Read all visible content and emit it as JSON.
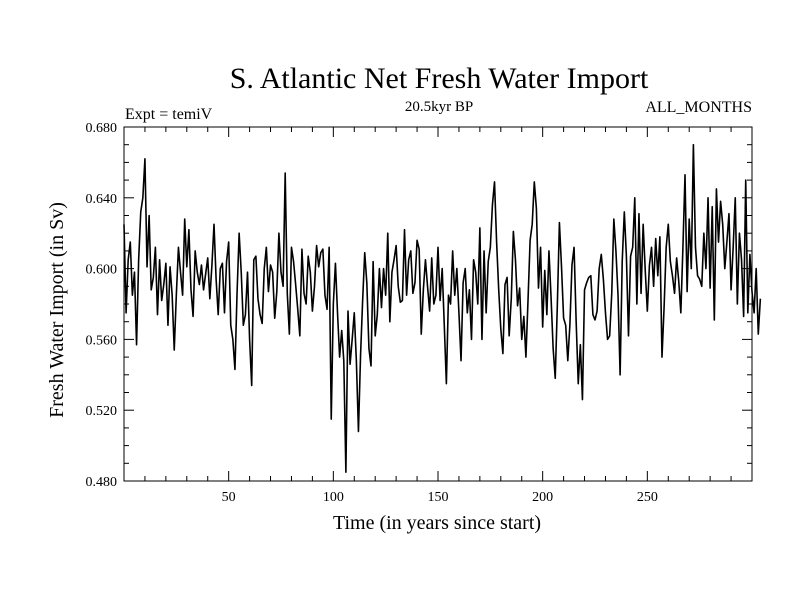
{
  "chart_data": {
    "type": "line",
    "title": "S. Atlantic Net Fresh Water Import",
    "subtitle": "20.5kyr BP",
    "left_label": "Expt = temiV",
    "right_label": "ALL_MONTHS",
    "xlabel": "Time (in years since start)",
    "ylabel": "Fresh Water Import (in Sv)",
    "xlim": [
      0,
      300
    ],
    "ylim": [
      0.48,
      0.68
    ],
    "x_ticks": [
      50,
      100,
      150,
      200,
      250
    ],
    "x_tick_labels": [
      "50",
      "100",
      "150",
      "200",
      "250"
    ],
    "y_ticks": [
      0.48,
      0.52,
      0.56,
      0.6,
      0.64,
      0.68
    ],
    "y_tick_labels": [
      "0.480",
      "0.520",
      "0.560",
      "0.600",
      "0.640",
      "0.680"
    ],
    "line_color": "#000000",
    "series": [
      {
        "name": "Fresh Water Import",
        "x_start": 1,
        "x_step": 1,
        "values": [
          0.625,
          0.575,
          0.605,
          0.615,
          0.585,
          0.598,
          0.557,
          0.605,
          0.632,
          0.64,
          0.662,
          0.601,
          0.63,
          0.588,
          0.595,
          0.612,
          0.574,
          0.605,
          0.582,
          0.591,
          0.603,
          0.568,
          0.601,
          0.585,
          0.554,
          0.585,
          0.612,
          0.598,
          0.585,
          0.628,
          0.601,
          0.622,
          0.588,
          0.573,
          0.61,
          0.598,
          0.591,
          0.602,
          0.588,
          0.597,
          0.606,
          0.583,
          0.602,
          0.625,
          0.594,
          0.574,
          0.6,
          0.603,
          0.575,
          0.604,
          0.615,
          0.568,
          0.56,
          0.543,
          0.586,
          0.62,
          0.598,
          0.568,
          0.574,
          0.598,
          0.56,
          0.534,
          0.605,
          0.607,
          0.583,
          0.574,
          0.569,
          0.6,
          0.612,
          0.587,
          0.602,
          0.598,
          0.572,
          0.587,
          0.62,
          0.598,
          0.59,
          0.654,
          0.586,
          0.563,
          0.612,
          0.604,
          0.591,
          0.577,
          0.562,
          0.611,
          0.586,
          0.58,
          0.607,
          0.598,
          0.576,
          0.59,
          0.613,
          0.601,
          0.609,
          0.611,
          0.585,
          0.577,
          0.612,
          0.515,
          0.58,
          0.603,
          0.575,
          0.55,
          0.565,
          0.548,
          0.485,
          0.576,
          0.546,
          0.56,
          0.575,
          0.548,
          0.508,
          0.551,
          0.582,
          0.609,
          0.592,
          0.555,
          0.545,
          0.604,
          0.562,
          0.574,
          0.6,
          0.578,
          0.6,
          0.585,
          0.62,
          0.57,
          0.598,
          0.605,
          0.613,
          0.59,
          0.581,
          0.582,
          0.622,
          0.585,
          0.605,
          0.61,
          0.586,
          0.592,
          0.616,
          0.611,
          0.563,
          0.588,
          0.605,
          0.59,
          0.576,
          0.606,
          0.58,
          0.585,
          0.612,
          0.582,
          0.6,
          0.568,
          0.535,
          0.585,
          0.58,
          0.61,
          0.585,
          0.6,
          0.575,
          0.548,
          0.592,
          0.6,
          0.575,
          0.588,
          0.56,
          0.605,
          0.598,
          0.58,
          0.623,
          0.56,
          0.61,
          0.575,
          0.604,
          0.612,
          0.636,
          0.649,
          0.615,
          0.588,
          0.566,
          0.552,
          0.591,
          0.595,
          0.562,
          0.583,
          0.621,
          0.605,
          0.579,
          0.589,
          0.56,
          0.573,
          0.55,
          0.582,
          0.616,
          0.625,
          0.649,
          0.634,
          0.589,
          0.612,
          0.567,
          0.599,
          0.574,
          0.61,
          0.584,
          0.555,
          0.538,
          0.579,
          0.626,
          0.601,
          0.572,
          0.568,
          0.548,
          0.568,
          0.602,
          0.612,
          0.57,
          0.535,
          0.557,
          0.526,
          0.588,
          0.592,
          0.595,
          0.596,
          0.574,
          0.571,
          0.576,
          0.6,
          0.608,
          0.594,
          0.575,
          0.56,
          0.562,
          0.586,
          0.628,
          0.61,
          0.585,
          0.54,
          0.604,
          0.632,
          0.607,
          0.562,
          0.607,
          0.612,
          0.64,
          0.58,
          0.631,
          0.586,
          0.625,
          0.599,
          0.576,
          0.602,
          0.612,
          0.59,
          0.617,
          0.596,
          0.618,
          0.55,
          0.578,
          0.612,
          0.625,
          0.604,
          0.596,
          0.586,
          0.606,
          0.593,
          0.575,
          0.612,
          0.653,
          0.587,
          0.628,
          0.6,
          0.67,
          0.612,
          0.596,
          0.594,
          0.59,
          0.62,
          0.6,
          0.64,
          0.589,
          0.635,
          0.571,
          0.645,
          0.615,
          0.638,
          0.625,
          0.6,
          0.615,
          0.631,
          0.588,
          0.612,
          0.64,
          0.58,
          0.62,
          0.605,
          0.573,
          0.65,
          0.575,
          0.608,
          0.587,
          0.575,
          0.6,
          0.563,
          0.583
        ]
      }
    ]
  }
}
